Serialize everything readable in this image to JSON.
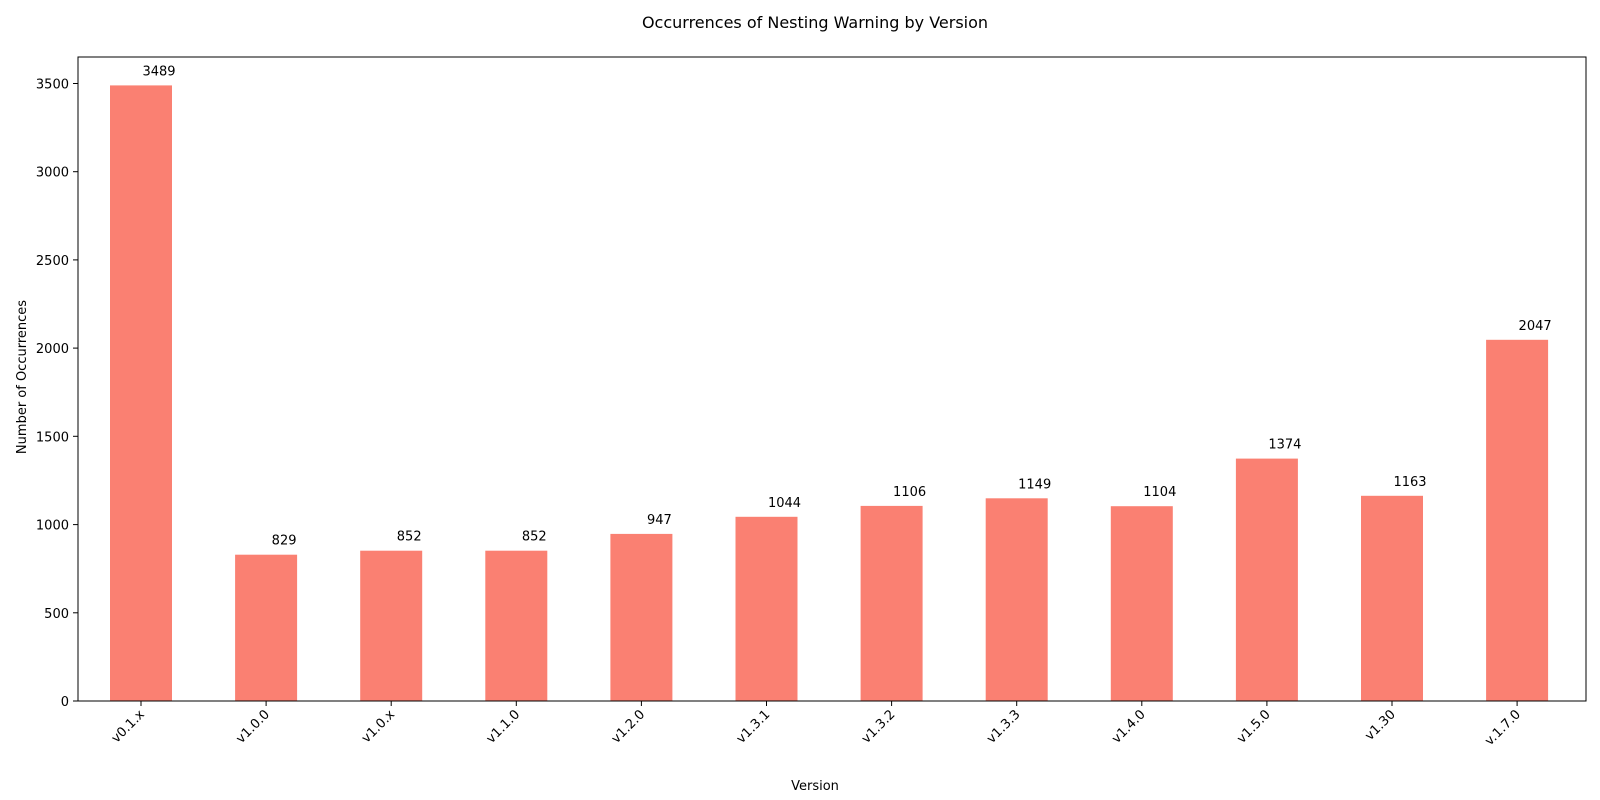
{
  "chart_data": {
    "type": "bar",
    "title": "Occurrences of Nesting Warning by Version",
    "xlabel": "Version",
    "ylabel": "Number of Occurrences",
    "categories": [
      "v0.1.x",
      "v1.0.0",
      "v1.0.x",
      "v1.1.0",
      "v1.2.0",
      "v1.3.1",
      "v1.3.2",
      "v1.3.3",
      "v1.4.0",
      "v1.5.0",
      "v1.30",
      "v.1.7.0"
    ],
    "values": [
      3489,
      829,
      852,
      852,
      947,
      1044,
      1106,
      1149,
      1104,
      1374,
      1163,
      2047
    ],
    "data_labels": [
      "3489",
      "829",
      "852",
      "852",
      "947",
      "1044",
      "1106",
      "1149",
      "1104",
      "1374",
      "1163",
      "2047"
    ],
    "ylim": [
      0,
      3650
    ],
    "yticks": [
      0,
      500,
      1000,
      1500,
      2000,
      2500,
      3000,
      3500
    ],
    "ytick_labels": [
      "0",
      "500",
      "1000",
      "1500",
      "2000",
      "2500",
      "3000",
      "3500"
    ],
    "grid": false,
    "legend": "none",
    "bar_color": "#fa8072",
    "axis_color": "#000000"
  }
}
